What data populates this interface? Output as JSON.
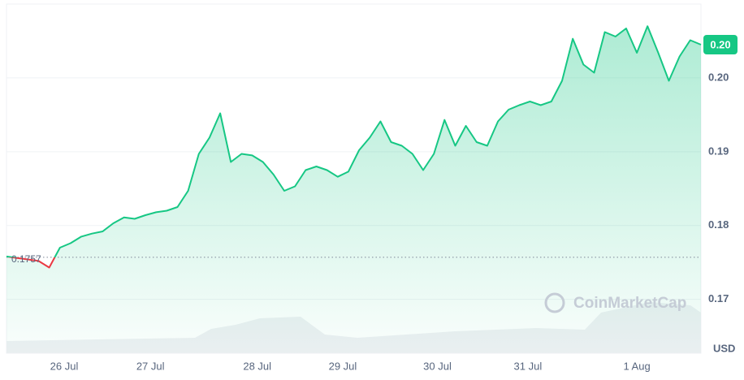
{
  "chart_data": {
    "type": "line",
    "values": [
      0.1758,
      0.1756,
      0.1754,
      0.1752,
      0.1743,
      0.177,
      0.1776,
      0.1785,
      0.1789,
      0.1792,
      0.1803,
      0.1811,
      0.1809,
      0.1814,
      0.1818,
      0.182,
      0.1825,
      0.1847,
      0.1897,
      0.1919,
      0.1952,
      0.1886,
      0.1897,
      0.1895,
      0.1886,
      0.1869,
      0.1847,
      0.1853,
      0.1875,
      0.188,
      0.1875,
      0.1866,
      0.1873,
      0.1902,
      0.1919,
      0.1941,
      0.1913,
      0.1908,
      0.1897,
      0.1875,
      0.1897,
      0.1943,
      0.1908,
      0.1935,
      0.1913,
      0.1908,
      0.1941,
      0.1957,
      0.1963,
      0.1968,
      0.1963,
      0.1968,
      0.1996,
      0.2053,
      0.2018,
      0.2007,
      0.2062,
      0.2056,
      0.2067,
      0.2034,
      0.207,
      0.2034,
      0.1996,
      0.2029,
      0.2051,
      0.2045
    ],
    "color": "#16c784",
    "down_color": "#ea3943",
    "xlim": [
      0,
      65
    ],
    "xticks": [
      {
        "value": 5.4,
        "label": "26 Jul"
      },
      {
        "value": 13.47,
        "label": "27 Jul"
      },
      {
        "value": 23.47,
        "label": "28 Jul"
      },
      {
        "value": 31.47,
        "label": "29 Jul"
      },
      {
        "value": 40.33,
        "label": "30 Jul"
      },
      {
        "value": 48.8,
        "label": "31 Jul"
      },
      {
        "value": 59,
        "label": "1 Aug"
      }
    ],
    "ylim": [
      0.1627,
      0.21
    ],
    "yticks": [
      0.17,
      0.18,
      0.19,
      {
        "value": 0.2,
        "label": "0.20"
      }
    ],
    "reference_line": 0.1757,
    "current_price": {
      "value": 0.2045,
      "label": "0.20"
    },
    "currency": "USD",
    "watermark": "CoinMarketCap",
    "grid": true
  }
}
